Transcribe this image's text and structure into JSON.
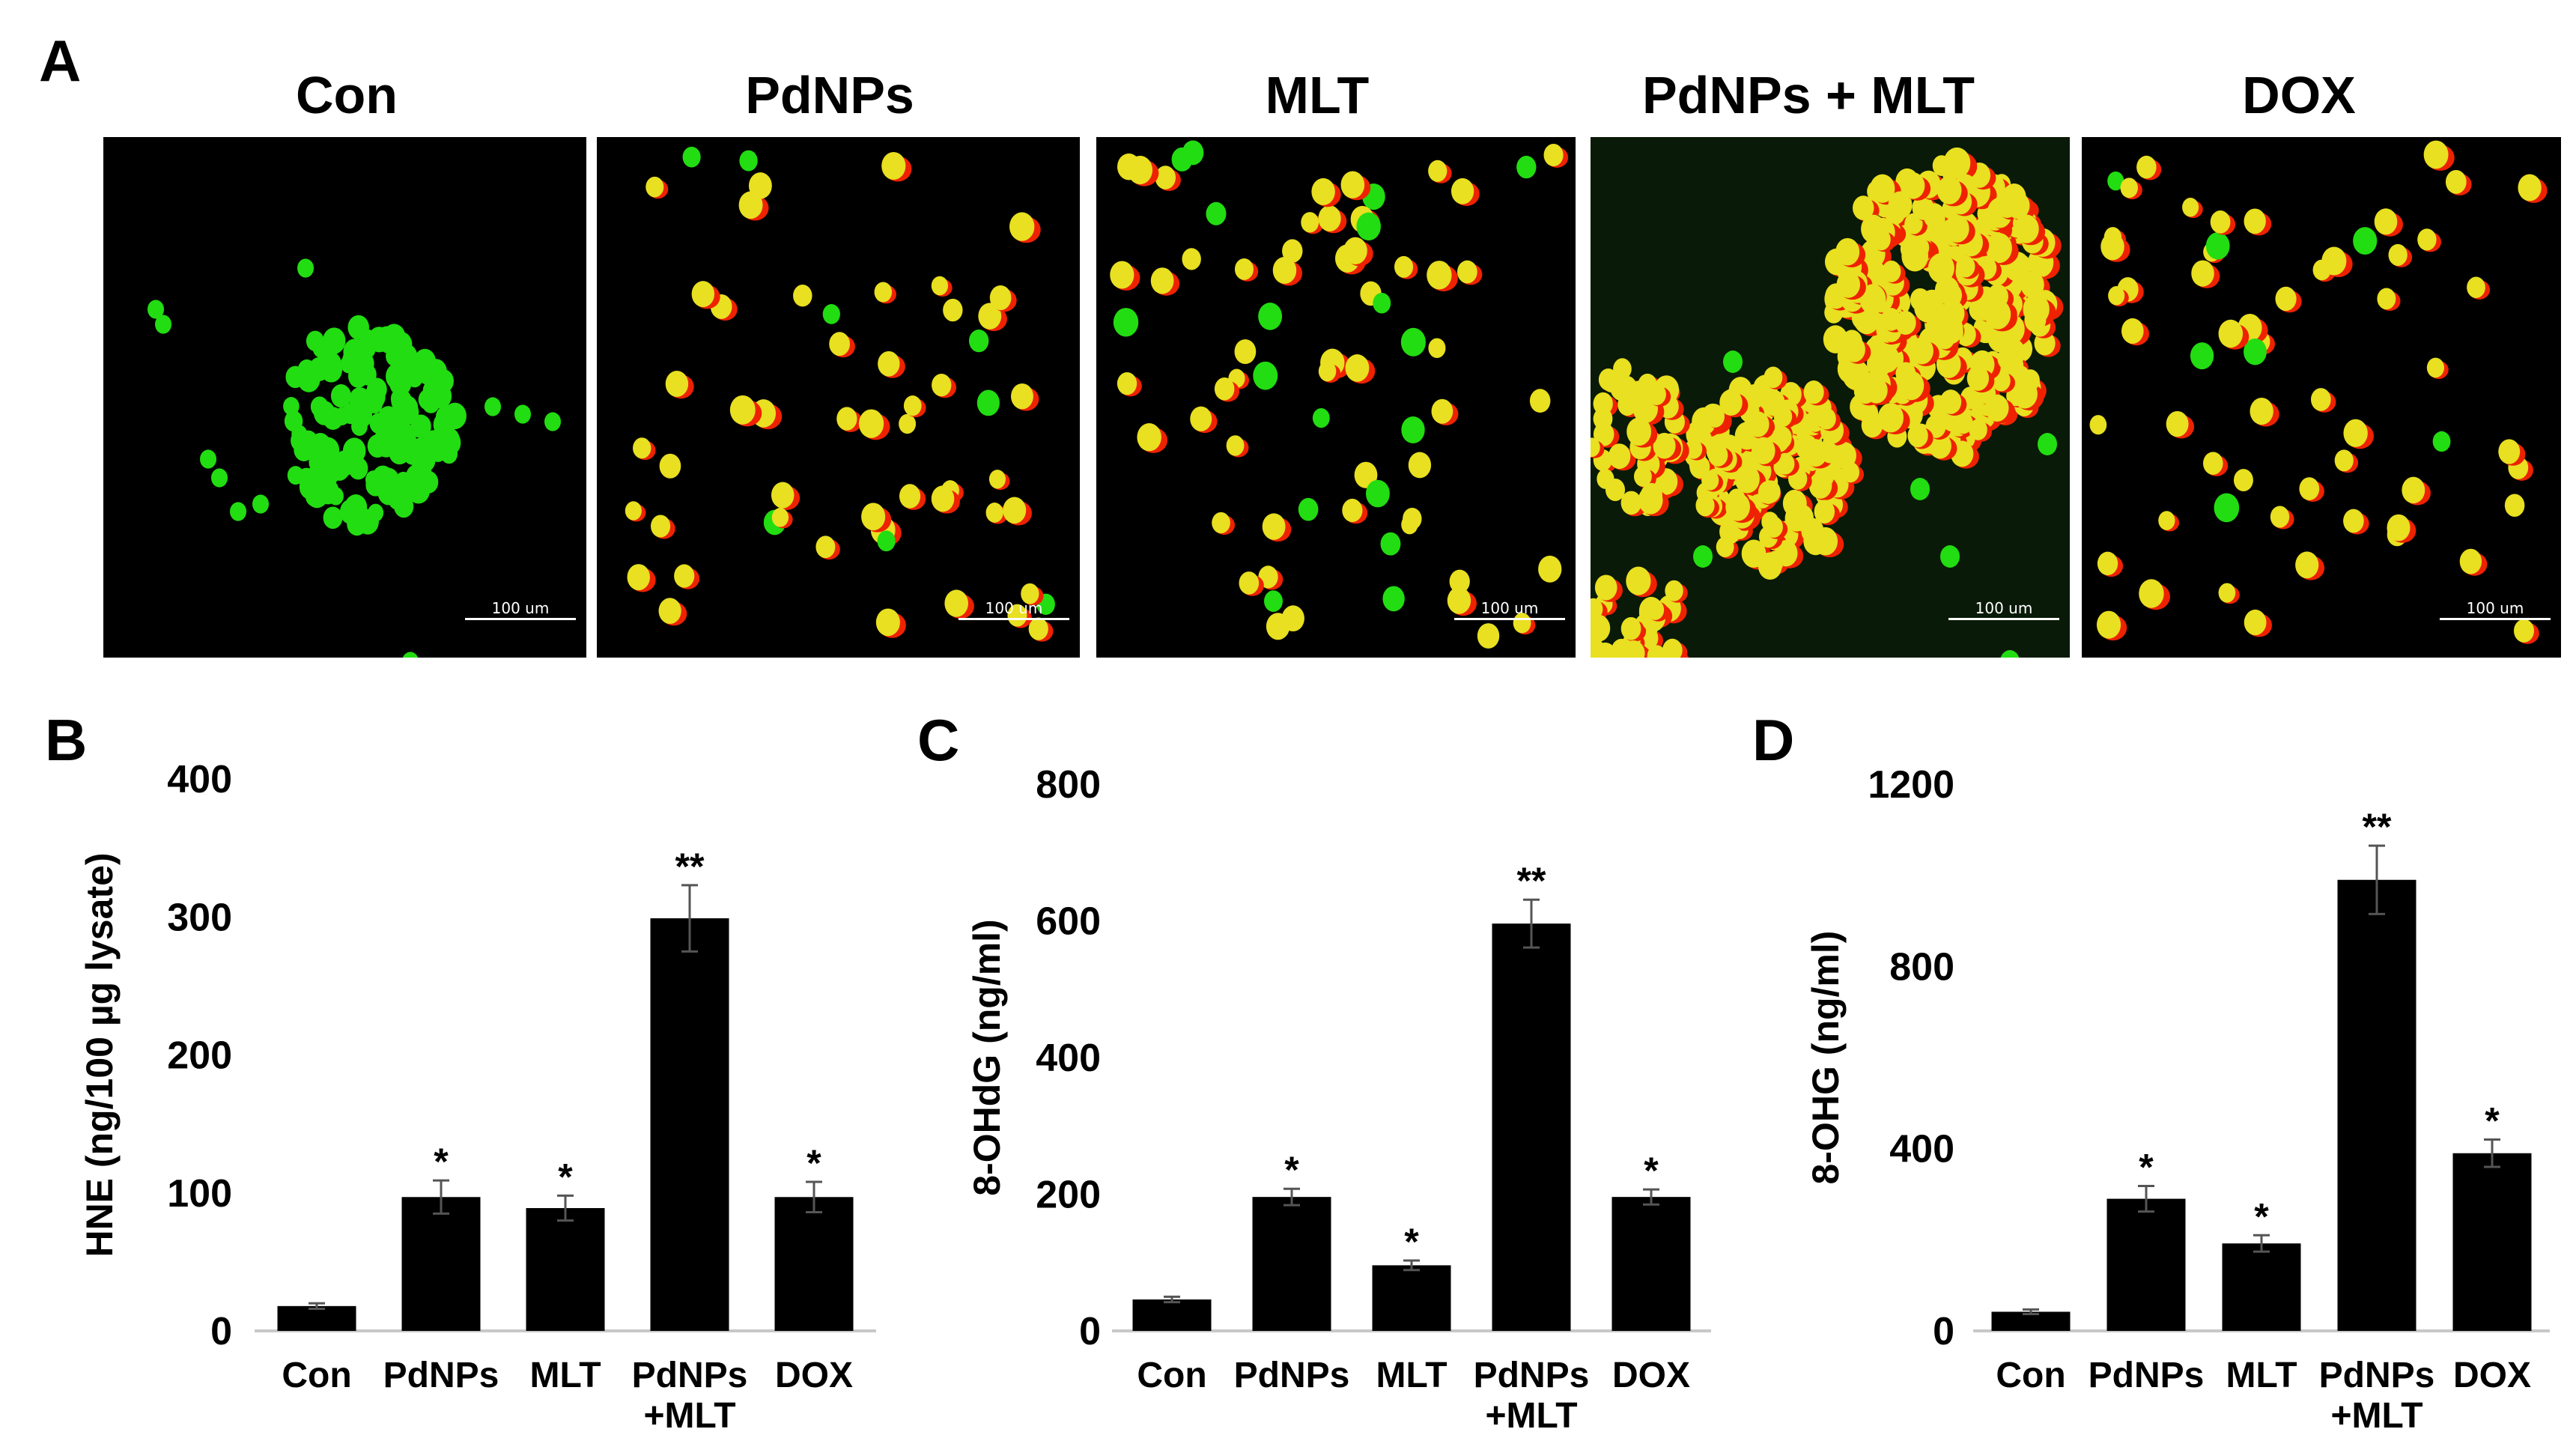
{
  "figure": {
    "panel_a_label": "A",
    "images": [
      {
        "title": "Con",
        "scale_label": "100 um",
        "pattern": "green-cluster"
      },
      {
        "title": "PdNPs",
        "scale_label": "100 um",
        "pattern": "scattered-yellow"
      },
      {
        "title": "MLT",
        "scale_label": "100 um",
        "pattern": "scattered-mixed"
      },
      {
        "title": "PdNPs + MLT",
        "scale_label": "100 um",
        "pattern": "yellow-red-clusters"
      },
      {
        "title": "DOX",
        "scale_label": "100 um",
        "pattern": "scattered-red"
      }
    ],
    "colors": {
      "bar": "#000000",
      "green_stain": "#22dd11",
      "yellow_stain": "#e8e020",
      "red_stain": "#ee2200"
    }
  },
  "chart_data": [
    {
      "panel": "B",
      "type": "bar",
      "categories": [
        "Con",
        "PdNPs",
        "MLT",
        "PdNPs\n+MLT",
        "DOX"
      ],
      "values": [
        18,
        97,
        89,
        299,
        97
      ],
      "errors": [
        2,
        12,
        9,
        24,
        11
      ],
      "significance": [
        "",
        "*",
        "*",
        "**",
        "*"
      ],
      "ylabel": "HNE (ng/100 µg lysate)",
      "ylim": [
        0,
        400
      ],
      "yticks": [
        0,
        100,
        200,
        300,
        400
      ],
      "grid": false
    },
    {
      "panel": "C",
      "type": "bar",
      "categories": [
        "Con",
        "PdNPs",
        "MLT",
        "PdNPs\n+MLT",
        "DOX"
      ],
      "values": [
        46,
        196,
        96,
        596,
        196
      ],
      "errors": [
        4,
        12,
        7,
        35,
        11
      ],
      "significance": [
        "",
        "*",
        "*",
        "**",
        "*"
      ],
      "ylabel": "8-OHdG (ng/ml)",
      "ylim": [
        0,
        800
      ],
      "yticks": [
        0,
        200,
        400,
        600,
        800
      ],
      "grid": false
    },
    {
      "panel": "D",
      "type": "bar",
      "categories": [
        "Con",
        "PdNPs",
        "MLT",
        "PdNPs\n+MLT",
        "DOX"
      ],
      "values": [
        42,
        290,
        192,
        990,
        390
      ],
      "errors": [
        5,
        28,
        18,
        75,
        30
      ],
      "significance": [
        "",
        "*",
        "*",
        "**",
        "*"
      ],
      "ylabel": "8-OHG (ng/ml)",
      "ylim": [
        0,
        1200
      ],
      "yticks": [
        0,
        400,
        800,
        1200
      ],
      "grid": false
    }
  ]
}
